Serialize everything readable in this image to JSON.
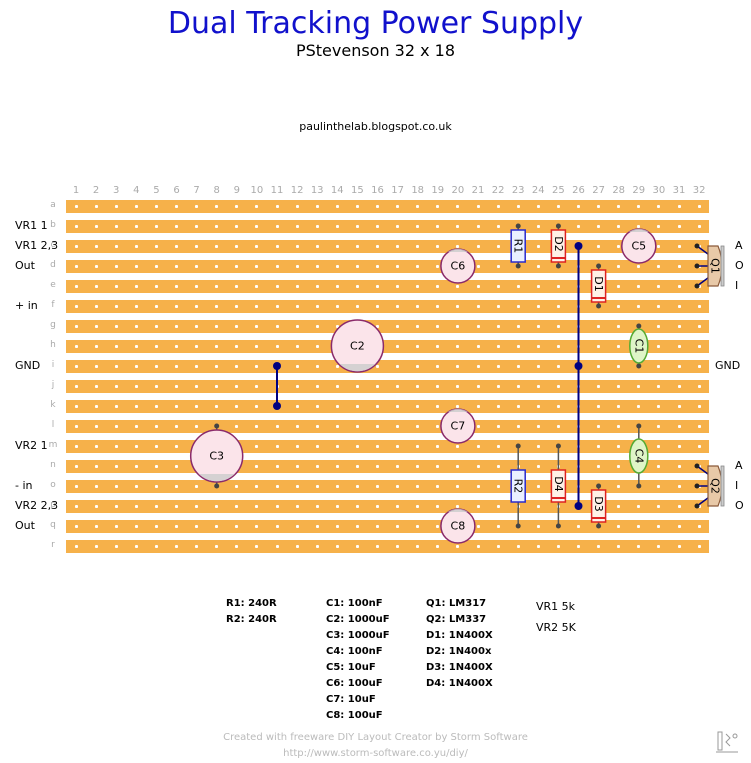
{
  "title": "Dual Tracking Power Supply",
  "subtitle": "PStevenson 32 x 18",
  "url": "paulinthelab.blogspot.co.uk",
  "board": {
    "rows": [
      "a",
      "b",
      "c",
      "d",
      "e",
      "f",
      "g",
      "h",
      "i",
      "j",
      "k",
      "l",
      "m",
      "n",
      "o",
      "p",
      "q",
      "r"
    ],
    "columns": [
      "1",
      "2",
      "3",
      "4",
      "5",
      "6",
      "7",
      "8",
      "9",
      "10",
      "11",
      "12",
      "13",
      "14",
      "15",
      "16",
      "17",
      "18",
      "19",
      "20",
      "21",
      "22",
      "23",
      "24",
      "25",
      "26",
      "27",
      "28",
      "29",
      "30",
      "31",
      "32"
    ],
    "strip_color": "#f6b14a",
    "left_labels": {
      "b": "VR1 1",
      "c": "VR1 2,3",
      "d": "Out",
      "f": "+ in",
      "i": "GND",
      "m": "VR2 1",
      "o": "- in",
      "p": "VR2 2,3",
      "q": "Out"
    },
    "right_labels": [
      {
        "row": "c",
        "text": "A"
      },
      {
        "row": "d",
        "text": "O"
      },
      {
        "row": "e",
        "text": "I"
      },
      {
        "row": "i",
        "text": "GND"
      },
      {
        "row": "n",
        "text": "A"
      },
      {
        "row": "o",
        "text": "I"
      },
      {
        "row": "p",
        "text": "O"
      }
    ],
    "components": {
      "capacitors": [
        {
          "name": "C2",
          "col": 15,
          "rows": [
            "g",
            "i"
          ],
          "kind": "electrolytic-large"
        },
        {
          "name": "C3",
          "col": 8,
          "rows": [
            "l",
            "o"
          ],
          "kind": "electrolytic-large"
        },
        {
          "name": "C5",
          "col": 29,
          "rows": [
            "c"
          ],
          "kind": "electrolytic"
        },
        {
          "name": "C6",
          "col": 20,
          "rows": [
            "d"
          ],
          "kind": "electrolytic"
        },
        {
          "name": "C7",
          "col": 20,
          "rows": [
            "l"
          ],
          "kind": "electrolytic"
        },
        {
          "name": "C8",
          "col": 20,
          "rows": [
            "q"
          ],
          "kind": "electrolytic"
        },
        {
          "name": "C1",
          "col": 29,
          "rows": [
            "g",
            "i"
          ],
          "kind": "ceramic"
        },
        {
          "name": "C4",
          "col": 29,
          "rows": [
            "l",
            "o"
          ],
          "kind": "ceramic"
        }
      ],
      "resistors": [
        {
          "name": "R1",
          "col": 23,
          "rows": [
            "b",
            "d"
          ]
        },
        {
          "name": "R2",
          "col": 23,
          "rows": [
            "m",
            "q"
          ]
        }
      ],
      "diodes": [
        {
          "name": "D2",
          "col": 25,
          "rows": [
            "b",
            "d"
          ]
        },
        {
          "name": "D1",
          "col": 27,
          "rows": [
            "d",
            "f"
          ]
        },
        {
          "name": "D4",
          "col": 25,
          "rows": [
            "m",
            "q"
          ]
        },
        {
          "name": "D3",
          "col": 27,
          "rows": [
            "o",
            "q"
          ]
        }
      ],
      "regulators": [
        {
          "name": "Q1",
          "rows": [
            "c",
            "e"
          ]
        },
        {
          "name": "Q2",
          "rows": [
            "n",
            "p"
          ]
        }
      ],
      "links": [
        {
          "col": 11,
          "rows": [
            "i",
            "k"
          ]
        },
        {
          "col": 26,
          "rows": [
            "c",
            "p"
          ]
        }
      ]
    },
    "colors": {
      "resistor": "#2a2acc",
      "diode": "#dd2222",
      "electrolytic": "#8a2a6a",
      "ceramic": "#55aa33",
      "wire": "#000080"
    }
  },
  "bom": {
    "resistors": [
      "R1: 240R",
      "R2: 240R"
    ],
    "capacitors": [
      "C1: 100nF",
      "C2: 1000uF",
      "C3: 1000uF",
      "C4: 100nF",
      "C5: 10uF",
      "C6: 100uF",
      "C7: 10uF",
      "C8: 100uF"
    ],
    "semis": [
      "Q1: LM317",
      "Q2: LM337",
      "D1: 1N400X",
      "D2: 1N400x",
      "D3: 1N400X",
      "D4: 1N400X"
    ],
    "pots": [
      "VR1 5k",
      "VR2 5K"
    ]
  },
  "footer": {
    "line1": "Created with freeware DIY Layout Creator by Storm Software",
    "line2": "http://www.storm-software.co.yu/diy/"
  }
}
